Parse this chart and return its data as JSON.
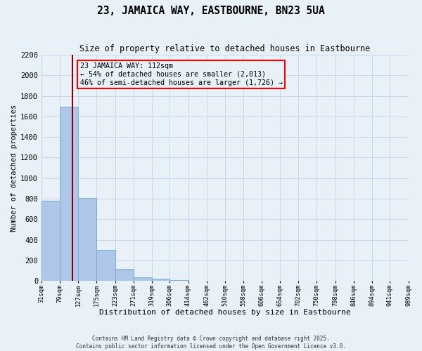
{
  "title": "23, JAMAICA WAY, EASTBOURNE, BN23 5UA",
  "subtitle": "Size of property relative to detached houses in Eastbourne",
  "xlabel": "Distribution of detached houses by size in Eastbourne",
  "ylabel": "Number of detached properties",
  "bar_edges": [
    31,
    79,
    127,
    175,
    223,
    271,
    319,
    366,
    414,
    462,
    510,
    558,
    606,
    654,
    702,
    750,
    798,
    846,
    894,
    941,
    989
  ],
  "bar_heights": [
    780,
    1695,
    810,
    300,
    115,
    35,
    20,
    5,
    0,
    0,
    0,
    0,
    0,
    0,
    0,
    0,
    0,
    0,
    0,
    0
  ],
  "bar_color": "#aec6e8",
  "bar_edgecolor": "#7bafd4",
  "property_line_x": 112,
  "property_line_color": "#8b0000",
  "annotation_text_line1": "23 JAMAICA WAY: 112sqm",
  "annotation_text_line2": "← 54% of detached houses are smaller (2,013)",
  "annotation_text_line3": "46% of semi-detached houses are larger (1,726) →",
  "annotation_box_color": "red",
  "ylim": [
    0,
    2200
  ],
  "yticks": [
    0,
    200,
    400,
    600,
    800,
    1000,
    1200,
    1400,
    1600,
    1800,
    2000,
    2200
  ],
  "xtick_labels": [
    "31sqm",
    "79sqm",
    "127sqm",
    "175sqm",
    "223sqm",
    "271sqm",
    "319sqm",
    "366sqm",
    "414sqm",
    "462sqm",
    "510sqm",
    "558sqm",
    "606sqm",
    "654sqm",
    "702sqm",
    "750sqm",
    "798sqm",
    "846sqm",
    "894sqm",
    "941sqm",
    "989sqm"
  ],
  "grid_color": "#c8d8ec",
  "bg_color": "#e8f0f8",
  "footer_line1": "Contains HM Land Registry data © Crown copyright and database right 2025.",
  "footer_line2": "Contains public sector information licensed under the Open Government Licence v3.0."
}
